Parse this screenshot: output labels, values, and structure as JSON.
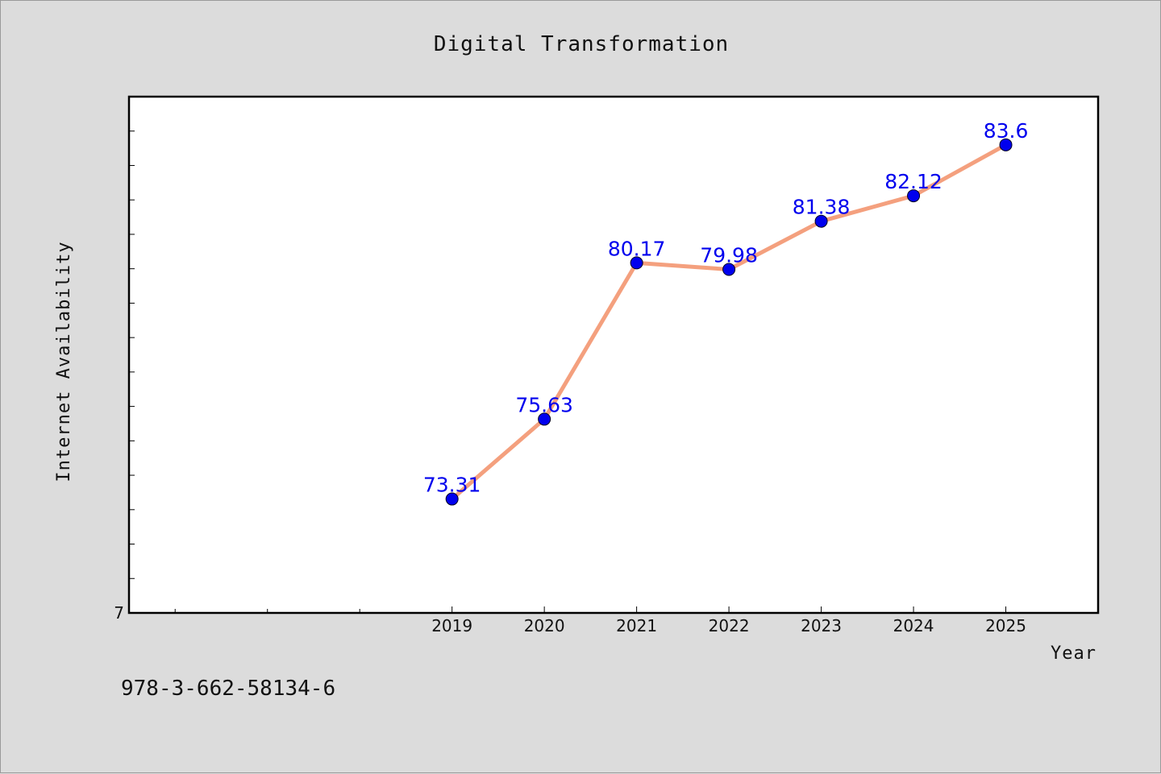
{
  "chart_data": {
    "type": "line",
    "title": "Digital Transformation",
    "xlabel": "Year",
    "ylabel": "Internet Availability",
    "x": [
      "2019",
      "2020",
      "2021",
      "2022",
      "2023",
      "2024",
      "2025"
    ],
    "series": [
      {
        "values": [
          73.31,
          75.63,
          80.17,
          79.98,
          81.38,
          82.12,
          83.6
        ],
        "labels": [
          "73.31",
          "75.63",
          "80.17",
          "79.98",
          "81.38",
          "82.12",
          "83.6"
        ]
      }
    ],
    "y_origin_label": "7",
    "xlim": [
      2015.5,
      2026
    ],
    "ylim": [
      70,
      85
    ],
    "grid": false,
    "line_color": "#f4a07e",
    "marker_color": "#0000ee"
  },
  "footnote": "978-3-662-58134-6"
}
